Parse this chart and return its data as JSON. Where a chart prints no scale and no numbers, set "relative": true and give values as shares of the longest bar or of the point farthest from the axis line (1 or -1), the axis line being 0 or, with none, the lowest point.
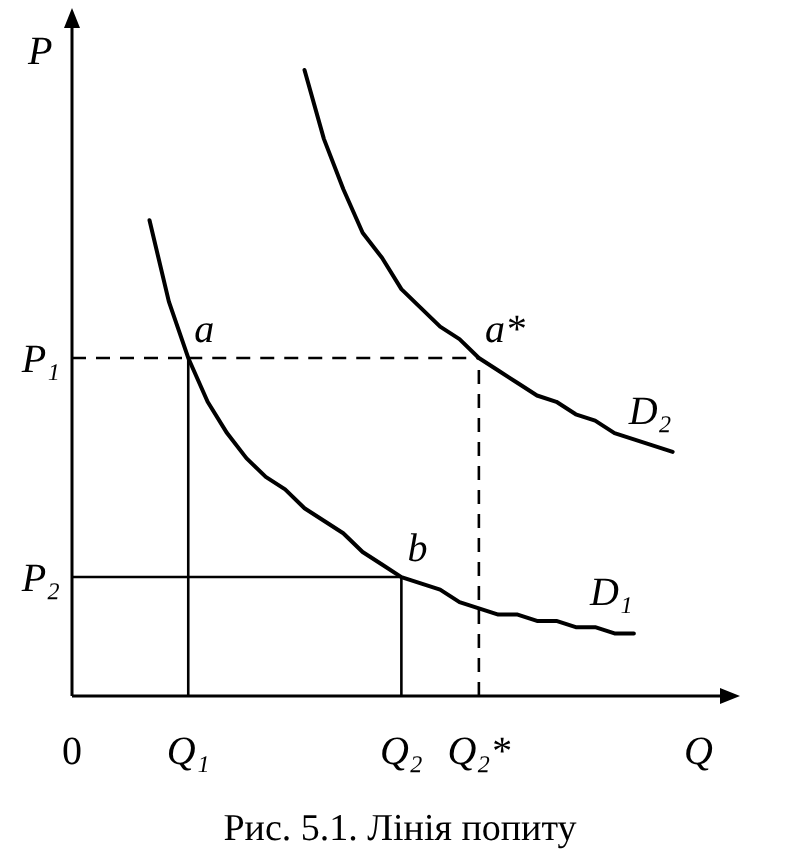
{
  "chart_data": {
    "type": "line",
    "relative": true,
    "xlabel": "Q",
    "ylabel": "P",
    "line_style": "solid",
    "categories": [
      "0",
      null,
      null,
      null,
      null,
      null,
      "Q₁",
      null,
      null,
      null,
      null,
      null,
      null,
      null,
      null,
      null,
      null,
      "Q₂",
      null,
      null,
      null,
      "Q₂*",
      null,
      null,
      null,
      null,
      null,
      null,
      null,
      null,
      null,
      null,
      null
    ],
    "series": [
      {
        "name": "D₁",
        "color": "#000000",
        "values": [
          null,
          null,
          null,
          null,
          0.76,
          0.63,
          0.54,
          0.47,
          0.42,
          0.38,
          0.35,
          0.33,
          0.3,
          0.28,
          0.26,
          0.23,
          0.21,
          0.19,
          0.18,
          0.17,
          0.15,
          0.14,
          0.13,
          0.13,
          0.12,
          0.12,
          0.11,
          0.11,
          0.1,
          0.1,
          null,
          null,
          null
        ]
      },
      {
        "name": "D₂",
        "color": "#000000",
        "values": [
          null,
          null,
          null,
          null,
          null,
          null,
          null,
          null,
          null,
          null,
          null,
          null,
          1,
          0.89,
          0.81,
          0.74,
          0.7,
          0.65,
          0.62,
          0.59,
          0.57,
          0.54,
          0.52,
          0.5,
          0.48,
          0.47,
          0.45,
          0.44,
          0.42,
          0.41,
          0.4,
          0.39,
          null
        ]
      }
    ],
    "ref_lines": [
      {
        "axis": "y",
        "value": 0.54,
        "label": "P₁",
        "line_style": "dashed"
      },
      {
        "axis": "y",
        "value": 0.19,
        "label": "P₂",
        "line_style": "solid"
      },
      {
        "axis": "x",
        "value": "Q₁",
        "line_style": "solid"
      },
      {
        "axis": "x",
        "value": "Q₂",
        "line_style": "solid"
      },
      {
        "axis": "x",
        "value": "Q₂*",
        "line_style": "dashed"
      }
    ],
    "annotations": [
      {
        "text": "a",
        "x": "Q₁",
        "y": 0.54
      },
      {
        "text": "a*",
        "x": "Q₂*",
        "y": 0.54
      },
      {
        "text": "b",
        "x": "Q₂",
        "y": 0.19
      },
      "Рис. 5.1. Лінія попиту"
    ]
  }
}
